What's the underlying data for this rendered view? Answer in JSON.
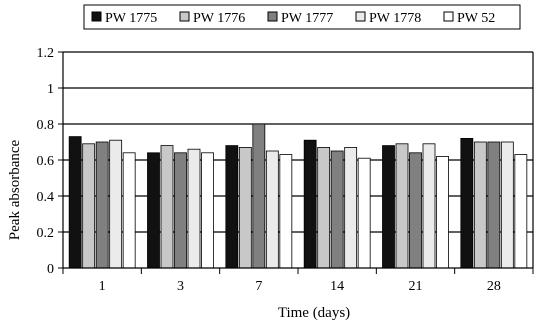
{
  "chart_data": {
    "type": "bar",
    "title": "",
    "xlabel": "Time (days)",
    "ylabel": "Peak absorbance",
    "ylim": [
      0,
      1.2
    ],
    "yticks": [
      "0",
      "0.2",
      "0.4",
      "0.6",
      "0.8",
      "1",
      "1.2"
    ],
    "grid": true,
    "legend_position": "top",
    "categories": [
      "1",
      "3",
      "7",
      "14",
      "21",
      "28"
    ],
    "series": [
      {
        "name": "PW 1775",
        "color": "#111111",
        "values": [
          0.73,
          0.64,
          0.68,
          0.71,
          0.68,
          0.72
        ]
      },
      {
        "name": "PW 1776",
        "color": "#c8c8c8",
        "values": [
          0.69,
          0.68,
          0.67,
          0.67,
          0.69,
          0.7
        ]
      },
      {
        "name": "PW 1777",
        "color": "#808080",
        "values": [
          0.7,
          0.64,
          0.8,
          0.65,
          0.64,
          0.7
        ]
      },
      {
        "name": "PW 1778",
        "color": "#ebebeb",
        "values": [
          0.71,
          0.66,
          0.65,
          0.67,
          0.69,
          0.7
        ]
      },
      {
        "name": "PW 52",
        "color": "#ffffff",
        "values": [
          0.64,
          0.64,
          0.63,
          0.61,
          0.62,
          0.63
        ]
      }
    ]
  }
}
